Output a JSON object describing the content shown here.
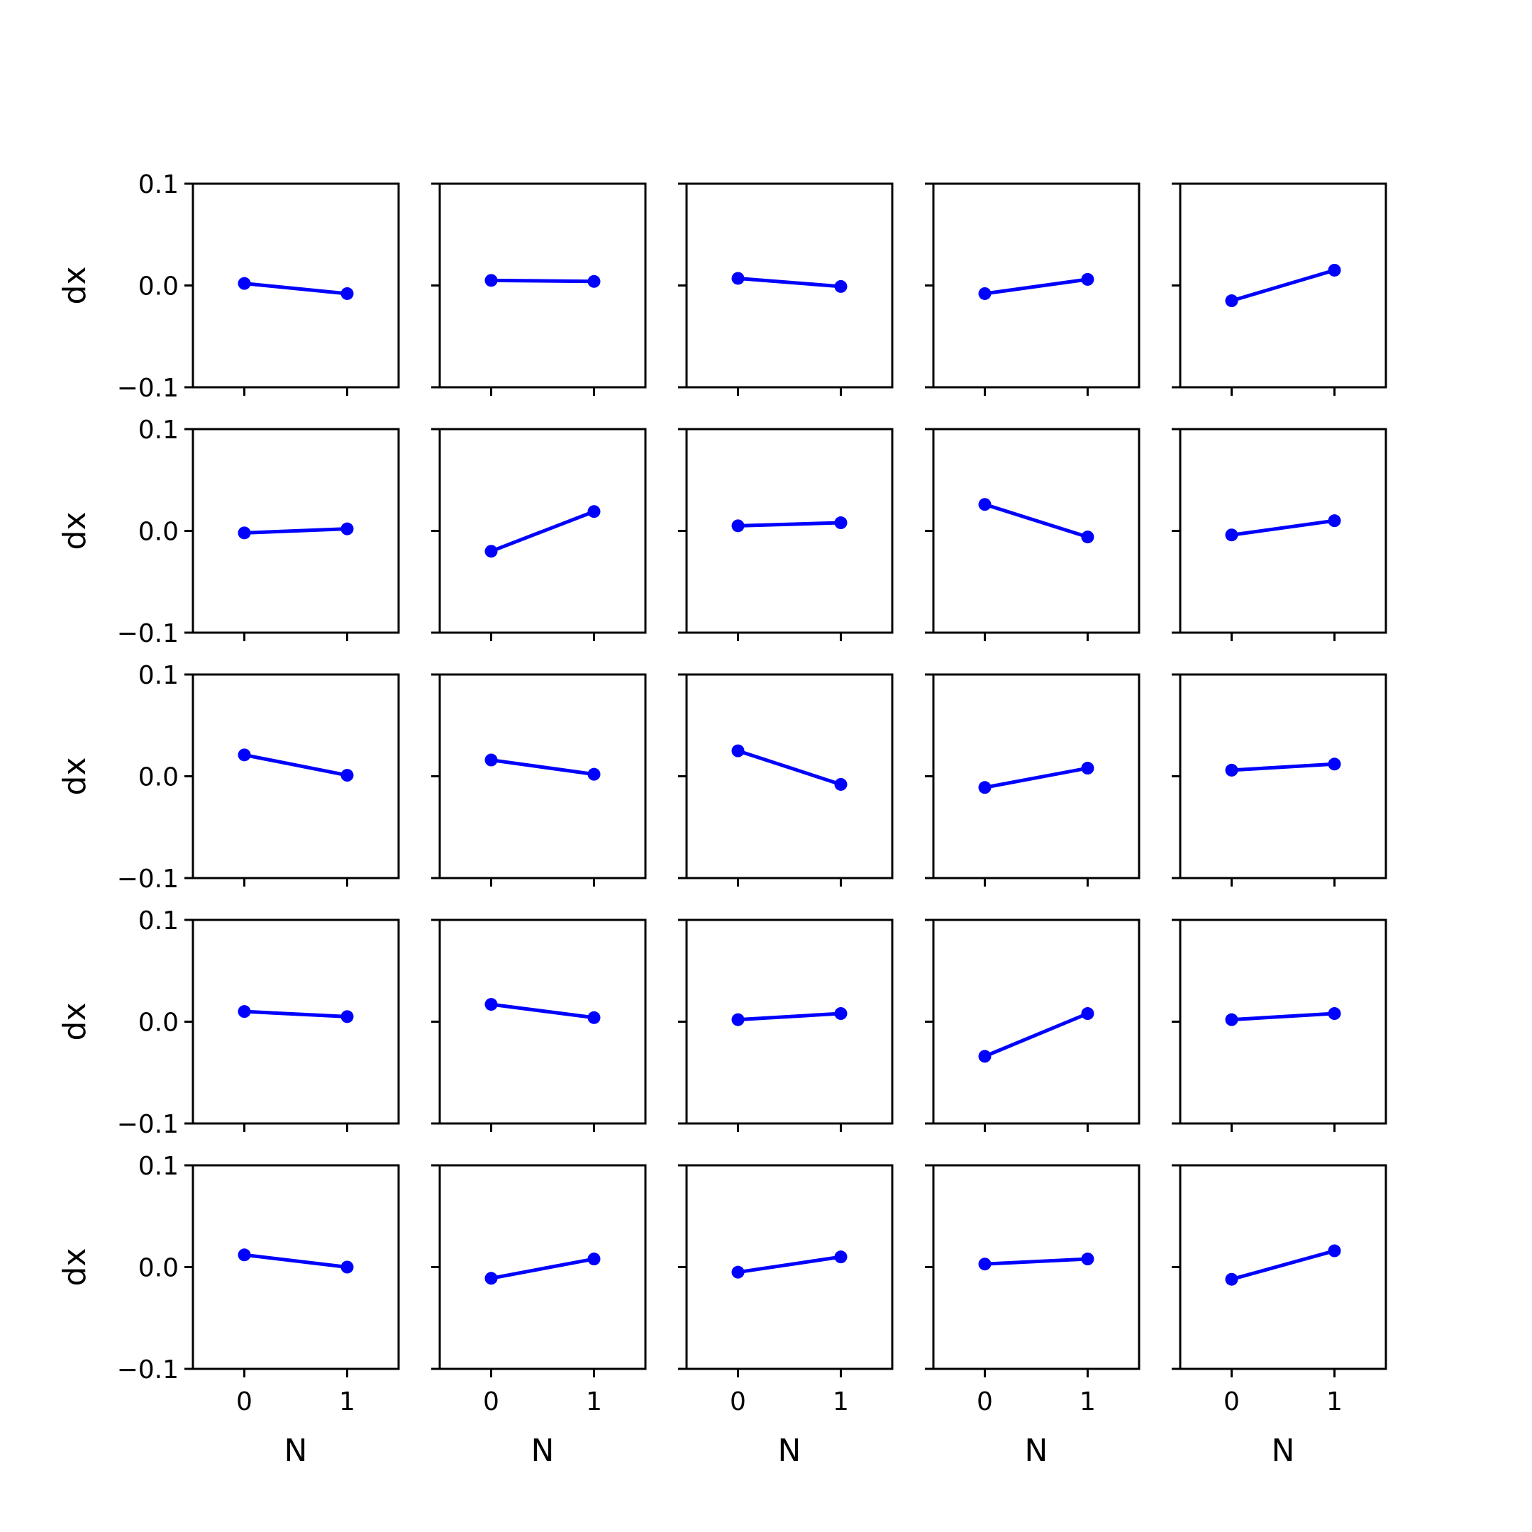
{
  "chart_data": {
    "type": "line",
    "layout": "grid",
    "rows": 5,
    "cols": 5,
    "xlabel": "N",
    "ylabel": "dx",
    "x": [
      0,
      1
    ],
    "xlim": [
      -0.5,
      1.5
    ],
    "ylim": [
      -0.1,
      0.1
    ],
    "xticks": [
      0,
      1
    ],
    "xtick_labels": [
      "0",
      "1"
    ],
    "yticks": [
      -0.1,
      0.0,
      0.1
    ],
    "ytick_labels": [
      "−0.1",
      "0.0",
      "0.1"
    ],
    "grid": false,
    "marker": "circle",
    "color": "#0000ff",
    "panels": [
      {
        "y": [
          0.002,
          -0.008
        ]
      },
      {
        "y": [
          0.005,
          0.004
        ]
      },
      {
        "y": [
          0.007,
          -0.001
        ]
      },
      {
        "y": [
          -0.008,
          0.006
        ]
      },
      {
        "y": [
          -0.015,
          0.015
        ]
      },
      {
        "y": [
          -0.002,
          0.002
        ]
      },
      {
        "y": [
          -0.02,
          0.019
        ]
      },
      {
        "y": [
          0.005,
          0.008
        ]
      },
      {
        "y": [
          0.026,
          -0.006
        ]
      },
      {
        "y": [
          -0.004,
          0.01
        ]
      },
      {
        "y": [
          0.021,
          0.001
        ]
      },
      {
        "y": [
          0.016,
          0.002
        ]
      },
      {
        "y": [
          0.025,
          -0.008
        ]
      },
      {
        "y": [
          -0.011,
          0.008
        ]
      },
      {
        "y": [
          0.006,
          0.012
        ]
      },
      {
        "y": [
          0.01,
          0.005
        ]
      },
      {
        "y": [
          0.017,
          0.004
        ]
      },
      {
        "y": [
          0.002,
          0.008
        ]
      },
      {
        "y": [
          -0.034,
          0.008
        ]
      },
      {
        "y": [
          0.002,
          0.008
        ]
      },
      {
        "y": [
          0.012,
          0.0
        ]
      },
      {
        "y": [
          -0.011,
          0.008
        ]
      },
      {
        "y": [
          -0.005,
          0.01
        ]
      },
      {
        "y": [
          0.003,
          0.008
        ]
      },
      {
        "y": [
          -0.012,
          0.016
        ]
      }
    ]
  }
}
